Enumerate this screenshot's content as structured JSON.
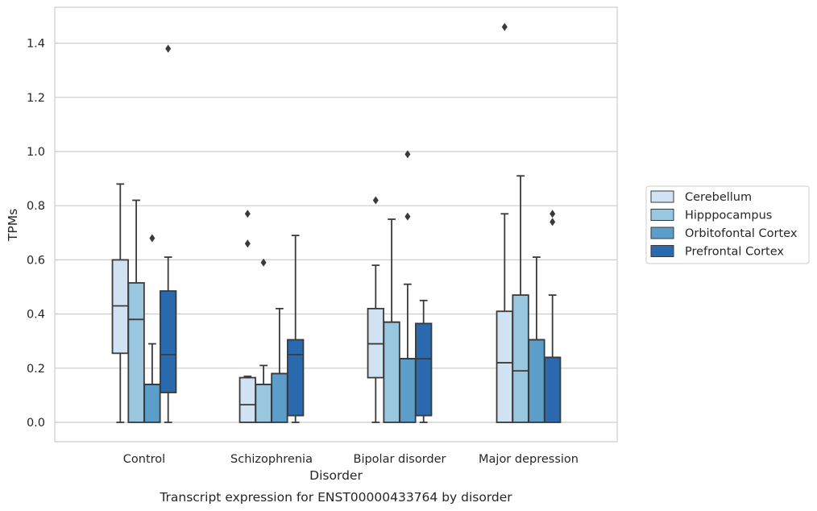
{
  "chart_data": {
    "type": "box",
    "title": "",
    "caption": "Transcript expression for ENST00000433764 by disorder",
    "xlabel": "Disorder",
    "ylabel": "TPMs",
    "ylim": [
      -0.07,
      1.53
    ],
    "yticks": [
      "0.0",
      "0.2",
      "0.4",
      "0.6",
      "0.8",
      "1.0",
      "1.2",
      "1.4"
    ],
    "grid": "horizontal",
    "legend_position": "right",
    "categories": [
      "Control",
      "Schizophrenia",
      "Bipolar disorder",
      "Major depression"
    ],
    "series": [
      {
        "name": "Cerebellum",
        "color": "#d1e2f2",
        "boxes": [
          {
            "whislo": 0.0,
            "q1": 0.255,
            "med": 0.43,
            "q3": 0.6,
            "whishi": 0.88,
            "fliers": []
          },
          {
            "whislo": 0.0,
            "q1": 0.0,
            "med": 0.065,
            "q3": 0.165,
            "whishi": 0.17,
            "fliers": [
              0.66,
              0.77
            ]
          },
          {
            "whislo": 0.0,
            "q1": 0.165,
            "med": 0.29,
            "q3": 0.42,
            "whishi": 0.58,
            "fliers": [
              0.82
            ]
          },
          {
            "whislo": 0.0,
            "q1": 0.0,
            "med": 0.22,
            "q3": 0.41,
            "whishi": 0.77,
            "fliers": [
              1.46
            ]
          }
        ]
      },
      {
        "name": "Hipppocampus",
        "color": "#9ac7e0",
        "boxes": [
          {
            "whislo": 0.0,
            "q1": 0.0,
            "med": 0.38,
            "q3": 0.515,
            "whishi": 0.82,
            "fliers": []
          },
          {
            "whislo": 0.0,
            "q1": 0.0,
            "med": 0.14,
            "q3": 0.14,
            "whishi": 0.21,
            "fliers": [
              0.59
            ]
          },
          {
            "whislo": 0.0,
            "q1": 0.0,
            "med": 0.37,
            "q3": 0.37,
            "whishi": 0.75,
            "fliers": []
          },
          {
            "whislo": 0.0,
            "q1": 0.0,
            "med": 0.19,
            "q3": 0.47,
            "whishi": 0.91,
            "fliers": []
          }
        ]
      },
      {
        "name": "Orbitofontal Cortex",
        "color": "#5a9ec9",
        "boxes": [
          {
            "whislo": 0.0,
            "q1": 0.0,
            "med": 0.14,
            "q3": 0.14,
            "whishi": 0.29,
            "fliers": [
              0.68
            ]
          },
          {
            "whislo": 0.0,
            "q1": 0.0,
            "med": 0.18,
            "q3": 0.18,
            "whishi": 0.42,
            "fliers": []
          },
          {
            "whislo": 0.0,
            "q1": 0.0,
            "med": 0.235,
            "q3": 0.235,
            "whishi": 0.51,
            "fliers": [
              0.76,
              0.99
            ]
          },
          {
            "whislo": 0.0,
            "q1": 0.0,
            "med": 0.305,
            "q3": 0.305,
            "whishi": 0.61,
            "fliers": []
          }
        ]
      },
      {
        "name": "Prefrontal Cortex",
        "color": "#2a69ad",
        "boxes": [
          {
            "whislo": 0.0,
            "q1": 0.11,
            "med": 0.25,
            "q3": 0.485,
            "whishi": 0.61,
            "fliers": [
              1.38
            ]
          },
          {
            "whislo": 0.0,
            "q1": 0.025,
            "med": 0.25,
            "q3": 0.305,
            "whishi": 0.69,
            "fliers": []
          },
          {
            "whislo": 0.0,
            "q1": 0.025,
            "med": 0.235,
            "q3": 0.365,
            "whishi": 0.45,
            "fliers": []
          },
          {
            "whislo": 0.0,
            "q1": 0.0,
            "med": 0.24,
            "q3": 0.24,
            "whishi": 0.47,
            "fliers": [
              0.74,
              0.77
            ]
          }
        ]
      }
    ]
  }
}
